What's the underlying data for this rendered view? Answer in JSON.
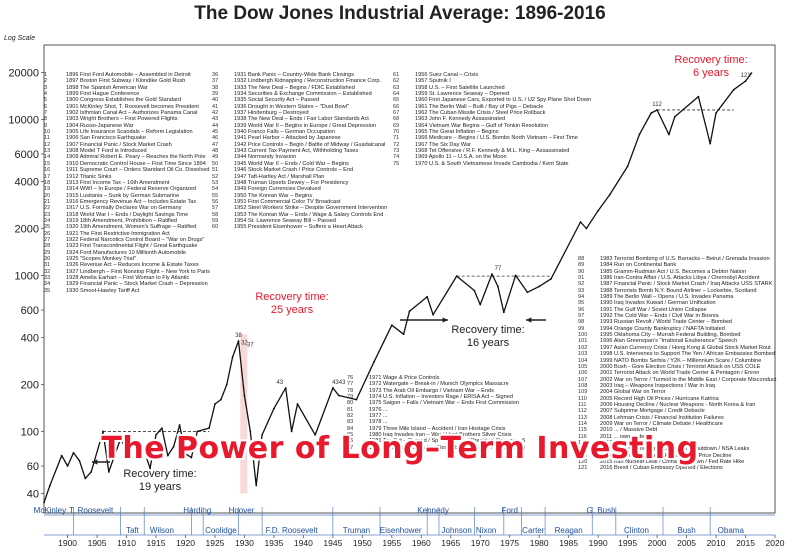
{
  "chart_data": {
    "type": "line",
    "title": "The Dow Jones Industrial Average: 1896-2016",
    "ylabel": "Log Scale",
    "yscale": "log",
    "ylim": [
      30,
      30000
    ],
    "xlim": [
      1896,
      2020
    ],
    "yticks": [
      20000,
      10000,
      6000,
      4000,
      2000,
      1000,
      600,
      400,
      200,
      100,
      60,
      40
    ],
    "xticks": [
      1900,
      1905,
      1910,
      1915,
      1920,
      1925,
      1930,
      1935,
      1940,
      1945,
      1950,
      1955,
      1960,
      1965,
      1970,
      1975,
      1980,
      1985,
      1990,
      1995,
      2000,
      2005,
      2010,
      2015,
      2020
    ],
    "series": [
      {
        "x": [
          1896,
          1897,
          1899,
          1900,
          1901,
          1902,
          1903,
          1904,
          1906,
          1907,
          1909,
          1910,
          1911,
          1913,
          1914,
          1915,
          1916,
          1917,
          1918,
          1919,
          1920,
          1921,
          1922,
          1924,
          1925,
          1926,
          1927,
          1928,
          1929,
          1930,
          1931,
          1932,
          1933,
          1935,
          1937,
          1938,
          1939,
          1942,
          1945,
          1946,
          1949,
          1952,
          1955,
          1957,
          1958,
          1961,
          1962,
          1966,
          1969,
          1970,
          1972,
          1973,
          1974,
          1976,
          1978,
          1980,
          1982,
          1987,
          1988,
          1990,
          1992,
          1995,
          1997,
          1999,
          2000,
          2002,
          2003,
          2007,
          2009,
          2010,
          2013,
          2015,
          2016
        ],
        "y": [
          35,
          45,
          70,
          60,
          73,
          65,
          50,
          55,
          100,
          55,
          90,
          75,
          82,
          75,
          58,
          95,
          105,
          70,
          80,
          110,
          72,
          68,
          100,
          105,
          150,
          160,
          200,
          300,
          380,
          170,
          100,
          45,
          95,
          140,
          190,
          100,
          150,
          95,
          190,
          170,
          160,
          280,
          480,
          420,
          590,
          730,
          560,
          990,
          800,
          650,
          1020,
          850,
          580,
          1000,
          780,
          850,
          950,
          2200,
          2000,
          2600,
          3300,
          5000,
          8000,
          11000,
          11500,
          8000,
          10400,
          14000,
          7000,
          11000,
          15500,
          17600,
          19800
        ],
        "name": ""
      }
    ],
    "recession_band": [
      1929,
      1954
    ],
    "recovery_labels": [
      {
        "text": "Recovery time: 25 years"
      },
      {
        "text": "Recovery time: 16 years"
      },
      {
        "text": "Recovery time: 6 years"
      },
      {
        "text": "Recovery time: 19 years"
      }
    ],
    "recovery_colors": {
      "red": "#e8192c",
      "black": "#222222"
    },
    "presidents_top": [
      "McKinley",
      "T. Roosevelt",
      "Harding",
      "Hoover",
      "Kennedy",
      "Ford",
      "G. Bush"
    ],
    "presidents_bottom": [
      "Taft",
      "Wilson",
      "Coolidge",
      "F.D. Roosevelt",
      "Truman",
      "Eisenhower",
      "Johnson",
      "Nixon",
      "Carter",
      "Reagan",
      "Clinton",
      "Bush",
      "Obama"
    ],
    "point_labels": [
      {
        "x": 1929,
        "y": 380,
        "text": "38"
      },
      {
        "x": 1930,
        "y": 340,
        "text": "32"
      },
      {
        "x": 1931,
        "y": 330,
        "text": "37"
      },
      {
        "x": 1936,
        "y": 190,
        "text": "43"
      },
      {
        "x": 1946,
        "y": 190,
        "text": "4343"
      },
      {
        "x": 1973,
        "y": 1020,
        "text": "77"
      },
      {
        "x": 2000,
        "y": 11500,
        "text": "112"
      },
      {
        "x": 2015,
        "y": 17600,
        "text": "121"
      }
    ]
  },
  "events_col1": [
    [
      "1",
      "1896 First Ford Automobile – Assembled in Detroit"
    ],
    [
      "2",
      "1897 Boston First Subway / Klondike Gold Rush"
    ],
    [
      "3",
      "1898 The Spanish American War"
    ],
    [
      "4",
      "1899 First Hague Conference"
    ],
    [
      "5",
      "1900 Congress Establishes the Gold Standard"
    ],
    [
      "6",
      "1901 McKinley Shot, T. Roosevelt becomes President"
    ],
    [
      "7",
      "1902 Isthmian Canal Act – Authorizes Panama Canal"
    ],
    [
      "8",
      "1903 Wright Brothers – First Powered Flights"
    ],
    [
      "9",
      "1904 Russo-Japanese War"
    ],
    [
      "10",
      "1905 Life Insurance Scandals – Reform Legislation"
    ],
    [
      "11",
      "1906 San Francisco Earthquake"
    ],
    [
      "12",
      "1907 Financial Panic / Stock Market Crash"
    ],
    [
      "13",
      "1908 Model T Ford is Introduced"
    ],
    [
      "14",
      "1909 Admiral Robert E. Peary – Reaches the North Pole"
    ],
    [
      "15",
      "1910 Democratic Control House – First Time Since 1894"
    ],
    [
      "16",
      "1911 Supreme Court – Orders Standard Oil Co. Dissolved"
    ],
    [
      "17",
      "1912 Titanic Sinks"
    ],
    [
      "18",
      "1913 First Income Tax – 16th Amendment"
    ],
    [
      "19",
      "1914 WWI – In Europe / Federal Reserve Organized"
    ],
    [
      "20",
      "1915 Lusitania – Sunk by German Submarine"
    ],
    [
      "21",
      "1916 Emergency Revenue Act – Includes Estate Tax"
    ],
    [
      "22",
      "1917 U.S. Formally Declares War on Germany"
    ],
    [
      "23",
      "1918 World War I – Ends / Daylight Savings Time"
    ],
    [
      "24",
      "1919 18th Amendment, Prohibition – Ratified"
    ],
    [
      "25",
      "1920 19th Amendment, Women's Suffrage – Ratified"
    ],
    [
      "26",
      "1921 The First Restrictive Immigration Act"
    ],
    [
      "27",
      "1922 Federal Narcotics Control Board – \"War on Drugs\""
    ],
    [
      "28",
      "1923 First Transcontinental Flight / Great Earthquake"
    ],
    [
      "29",
      "1924 Ford Manufactures 10 Millionth Automobile"
    ],
    [
      "30",
      "1925 \"Scopes Monkey Trial\""
    ],
    [
      "31",
      "1926 Revenue Act – Reduces Income & Estate Taxes"
    ],
    [
      "32",
      "1927 Lindbergh – First Nonstop Flight – New York to Paris"
    ],
    [
      "33",
      "1928 Amelia Earhart – First Woman to Fly Atlantic"
    ],
    [
      "34",
      "1929 Financial Panic – Stock Market Crash – Depression"
    ],
    [
      "35",
      "1930 Smoot-Hawley Tariff Act"
    ]
  ],
  "events_col2": [
    [
      "36",
      "1931 Bank Panic – Country-Wide Bank Closings"
    ],
    [
      "37",
      "1932 Lindbergh Kidnapping / Reconstruction Finance Corp."
    ],
    [
      "38",
      "1933 The New Deal – Begins / FDIC Established"
    ],
    [
      "39",
      "1934 Securities & Exchange Commission – Established"
    ],
    [
      "40",
      "1935 Social Security Act – Passed"
    ],
    [
      "41",
      "1936 Drought in Western States – \"Dust Bowl\""
    ],
    [
      "42",
      "1937 Hindenburg – Destroyed"
    ],
    [
      "43",
      "1938 The New Deal – Ends / Fair Labor Standards Act"
    ],
    [
      "44",
      "1939 World War II – Begins in Europe / Great Depression"
    ],
    [
      "45",
      "1940 Franco Falls – German Occupation"
    ],
    [
      "46",
      "1941 Pearl Harbor – Attacked by Japanese"
    ],
    [
      "47",
      "1942 Price Controls – Begin / Battle of Midway / Guadalcanal"
    ],
    [
      "48",
      "1943 Current Tax Payment Act, Withholding Taxes"
    ],
    [
      "49",
      "1944 Normandy Invasion"
    ],
    [
      "50",
      "1945 World War II – Ends / Cold War – Begins"
    ],
    [
      "51",
      "1946 Stock Market Crash / Price Controls – End"
    ],
    [
      "52",
      "1947 Taft-Hartley Act / Marshall Plan"
    ],
    [
      "53",
      "1948 Truman Upsets Dewey – For Presidency"
    ],
    [
      "54",
      "1949 Foreign Currencies Devalued"
    ],
    [
      "55",
      "1950 The Korean War – Begins"
    ],
    [
      "56",
      "1951 First Commercial Color TV Broadcast"
    ],
    [
      "57",
      "1952 Steel Workers Strike – Despite Government Intervention"
    ],
    [
      "58",
      "1953 The Korean War – Ends / Wage & Salary Controls End"
    ],
    [
      "59",
      "1954 St. Lawrence Seaway Bill – Passed"
    ],
    [
      "60",
      "1955 President Eisenhower – Suffers a Heart Attack"
    ]
  ],
  "events_col3": [
    [
      "61",
      "1956 Suez Canal – Crisis"
    ],
    [
      "62",
      "1957 Sputnik I"
    ],
    [
      "63",
      "1958 U.S. – First Satellite Launched"
    ],
    [
      "64",
      "1959 St. Lawrence Seaway – Opened"
    ],
    [
      "65",
      "1960 First Japanese Cars, Exported to U.S. / U2 Spy Plane Shot Down"
    ],
    [
      "66",
      "1961 The Berlin Wall – Built / Bay of Pigs – Debacle"
    ],
    [
      "67",
      "1962 The Cuban Missile Crisis / Steel Price Rollback"
    ],
    [
      "68",
      "1963 John F. Kennedy Assassinated"
    ],
    [
      "69",
      "1964 Vietnam War Begins – Gulf of Tonkin Resolution"
    ],
    [
      "70",
      "1965 The Great Inflation – Begins"
    ],
    [
      "71",
      "1966 Medicare – Begins / U.S. Bombs North Vietnam – First Time"
    ],
    [
      "72",
      "1967 The Six Day War"
    ],
    [
      "73",
      "1968 Tet Offensive / R.F. Kennedy & M.L. King – Assassinated"
    ],
    [
      "74",
      "1969 Apollo 11 – U.S.A. on the Moon"
    ],
    [
      "75",
      "1970 U.S. & South Vietnamese Invade Cambodia / Kent State"
    ]
  ],
  "events_col4": [
    [
      "76",
      "1971 Wage & Price Controls"
    ],
    [
      "77",
      "1972 Watergate – Break-in / Munich Olympics Massacre"
    ],
    [
      "78",
      "1973 The Arab Oil Embargo / Vietnam War – Ends"
    ],
    [
      "79",
      "1974 U.S. Inflation – Investors Rage / ERISA Act – Signed"
    ],
    [
      "80",
      "1975 Saigon – Falls / Vietnam War – Ends First Commission"
    ],
    [
      "81",
      "1976 ..."
    ],
    [
      "82",
      "1977 ..."
    ],
    [
      "83",
      "1978 ..."
    ],
    [
      "84",
      "1979 Three Mile Island – Accident / Iran Hostage Crisis"
    ],
    [
      "85",
      "1980 Iraq Invades Iran – War / Hunt Brothers Silver Crisis"
    ],
    [
      "86",
      "1981 Tax Cut – Passed / Space Shuttle / President Reagan – Shot"
    ],
    [
      "87",
      "1982 Penn Square Bank – Closed by Regulators / Falkland Islands War"
    ]
  ],
  "events_col5": [
    [
      "88",
      "1983 Terrorist Bombing of U.S. Barracks – Beirut / Grenada Invasion"
    ],
    [
      "89",
      "1984 Run on Continental Bank"
    ],
    [
      "90",
      "1985 Gramm-Rudman Act / U.S. Becomes a Debtor Nation"
    ],
    [
      "91",
      "1986 Iran-Contra Affair / U.S. Attacks Libya / Chernobyl Accident"
    ],
    [
      "92",
      "1987 Financial Panic / Stock Market Crash / Iraq Attacks USS STARK"
    ],
    [
      "93",
      "1988 Terrorists Bomb N.Y. Bound Airliner – Lockerbie, Scotland"
    ],
    [
      "94",
      "1989 The Berlin Wall – Opens / U.S. Invades Panama"
    ],
    [
      "95",
      "1990 Iraq Invades Kuwait / German Unification"
    ],
    [
      "96",
      "1991 The Gulf War / Soviet Union Collapse"
    ],
    [
      "97",
      "1992 The Cold War – Ends / Civil War in Bosnia"
    ],
    [
      "98",
      "1993 Russian Revolt / World Trade Center – Bombed"
    ],
    [
      "99",
      "1994 Orange County Bankruptcy / NAFTA Initiated"
    ],
    [
      "100",
      "1995 Oklahoma City – Murrah Federal Building, Bombed"
    ],
    [
      "101",
      "1996 Alan Greenspan's \"Irrational Exuberance\" Speech"
    ],
    [
      "102",
      "1997 Asian Currency Crisis / Hong Kong & Global Stock Market Rout"
    ],
    [
      "103",
      "1998 U.S. Intervenes to Support The Yen / African Embassies Bombed"
    ],
    [
      "104",
      "1999 NATO Bombs Serbia / Y2K – Millennium Scare / Columbine"
    ],
    [
      "105",
      "2000 Bush - Gore Election Crisis / Terrorist Attack on USS COLE"
    ],
    [
      "106",
      "2001 Terrorist Attack on World Trade Center & Pentagon / Enron"
    ],
    [
      "107",
      "2002 War on Terror / Turmoil in the Middle East / Corporate Misconduct"
    ],
    [
      "108",
      "2003 Iraq – Weapons Inspections / War in Iraq"
    ],
    [
      "109",
      "2004 Global War on Terror"
    ],
    [
      "110",
      "2005 Record High Oil Prices / Hurricane Katrina"
    ],
    [
      "111",
      "2006 Housing Decline / Nuclear Weapons - North Korea & Iran"
    ],
    [
      "112",
      "2007 Subprime Mortgage / Credit Debacle"
    ],
    [
      "113",
      "2008 Lehman Crisis / Financial Institution Failures"
    ],
    [
      "114",
      "2009 War on Terror / Climate Debate / Healthcare"
    ],
    [
      "115",
      "2010 ... / Massive Debt"
    ],
    [
      "116",
      "2011 ... owngrade"
    ],
    [
      "117",
      "2012 ..."
    ],
    [
      "118",
      "2013 Boston Bombing / Government Shutdown / NSA Leaks"
    ],
    [
      "119",
      "2014 Rise of ISIS / Police Protests / Oil Price Decline"
    ],
    [
      "120",
      "2015 Iran Nuclear Deal / China Slowdown / Fed Rate Hike"
    ],
    [
      "121",
      "2016 Brexit / Cuban Embassy Opened / Elections"
    ]
  ],
  "overlay_title": "The Power of Long–Term Investing"
}
